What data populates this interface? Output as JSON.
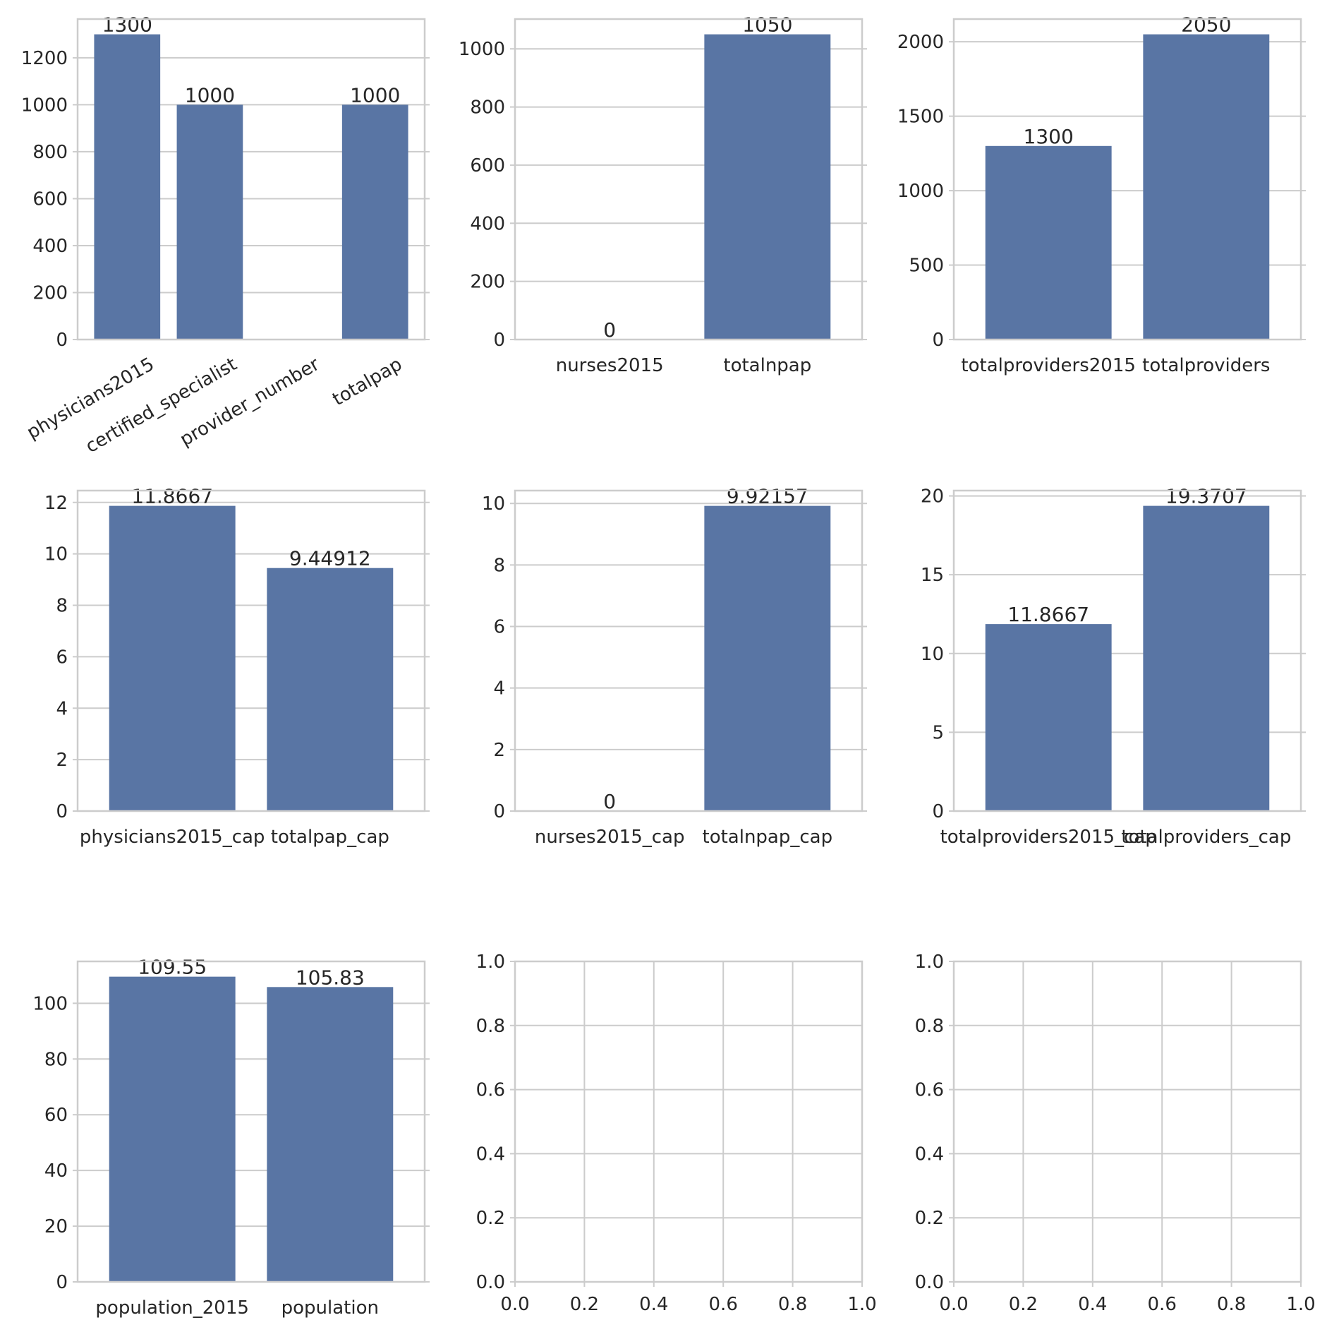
{
  "style": {
    "bar_color": "#5975a4",
    "grid_color": "#cccccc",
    "frame_color": "#cccccc",
    "text_color": "#262626",
    "background": "#ffffff"
  },
  "chart_data": [
    {
      "type": "bar",
      "categories": [
        "physicians2015",
        "certified_specialist",
        "provider_number",
        "totalpap"
      ],
      "values": [
        1300,
        1000,
        0,
        1000
      ],
      "bar_labels": [
        "1300",
        "1000",
        "",
        "1000"
      ],
      "ylim": [
        0,
        1365
      ],
      "yticks": [
        0,
        200,
        400,
        600,
        800,
        1000,
        1200
      ],
      "xtick_rotation": 30,
      "grid": true
    },
    {
      "type": "bar",
      "categories": [
        "nurses2015",
        "totalnpap"
      ],
      "values": [
        0,
        1050
      ],
      "bar_labels": [
        "0",
        "1050"
      ],
      "ylim": [
        0,
        1102.5
      ],
      "yticks": [
        0,
        200,
        400,
        600,
        800,
        1000
      ],
      "grid": true
    },
    {
      "type": "bar",
      "categories": [
        "totalproviders2015",
        "totalproviders"
      ],
      "values": [
        1300,
        2050
      ],
      "bar_labels": [
        "1300",
        "2050"
      ],
      "ylim": [
        0,
        2152.5
      ],
      "yticks": [
        0,
        500,
        1000,
        1500,
        2000
      ],
      "grid": true
    },
    {
      "type": "bar",
      "categories": [
        "physicians2015_cap",
        "totalpap_cap"
      ],
      "values": [
        11.8667,
        9.44912
      ],
      "bar_labels": [
        "11.8667",
        "9.44912"
      ],
      "ylim": [
        0,
        12.46
      ],
      "yticks": [
        0,
        2,
        4,
        6,
        8,
        10,
        12
      ],
      "grid": true
    },
    {
      "type": "bar",
      "categories": [
        "nurses2015_cap",
        "totalnpap_cap"
      ],
      "values": [
        0,
        9.92157
      ],
      "bar_labels": [
        "0",
        "9.92157"
      ],
      "ylim": [
        0,
        10.418
      ],
      "yticks": [
        0,
        2,
        4,
        6,
        8,
        10
      ],
      "grid": true
    },
    {
      "type": "bar",
      "categories": [
        "totalproviders2015_cap",
        "totalproviders_cap"
      ],
      "values": [
        11.8667,
        19.3707
      ],
      "bar_labels": [
        "11.8667",
        "19.3707"
      ],
      "ylim": [
        0,
        20.339
      ],
      "yticks": [
        0,
        5,
        10,
        15,
        20
      ],
      "grid": true
    },
    {
      "type": "bar",
      "categories": [
        "population_2015",
        "population"
      ],
      "values": [
        109.55,
        105.83
      ],
      "bar_labels": [
        "109.55",
        "105.83"
      ],
      "ylim": [
        0,
        115.03
      ],
      "yticks": [
        0,
        20,
        40,
        60,
        80,
        100
      ],
      "grid": true
    },
    {
      "type": "empty",
      "xlim": [
        0,
        1
      ],
      "ylim": [
        0,
        1
      ],
      "xticks": [
        "0.0",
        "0.2",
        "0.4",
        "0.6",
        "0.8",
        "1.0"
      ],
      "yticks": [
        "0.0",
        "0.2",
        "0.4",
        "0.6",
        "0.8",
        "1.0"
      ],
      "grid": true
    },
    {
      "type": "empty",
      "xlim": [
        0,
        1
      ],
      "ylim": [
        0,
        1
      ],
      "xticks": [
        "0.0",
        "0.2",
        "0.4",
        "0.6",
        "0.8",
        "1.0"
      ],
      "yticks": [
        "0.0",
        "0.2",
        "0.4",
        "0.6",
        "0.8",
        "1.0"
      ],
      "grid": true
    }
  ]
}
